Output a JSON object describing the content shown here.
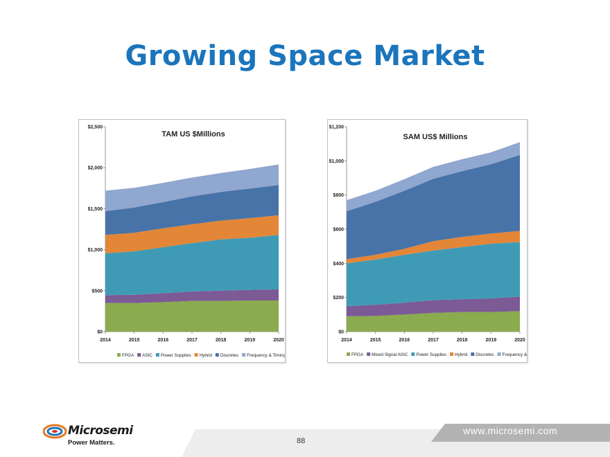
{
  "slide": {
    "title": "Growing Space Market",
    "page_number": "88",
    "website": "www.microsemi.com",
    "logo_name": "Microsemi",
    "logo_tagline": "Power Matters."
  },
  "colors": {
    "title": "#1b75bc",
    "series": [
      "#8aab4e",
      "#7b5a95",
      "#3f9bb5",
      "#e38637",
      "#4873a8",
      "#90a7cf"
    ]
  },
  "chart_data": [
    {
      "type": "area",
      "stacked": true,
      "title": "TAM US $Millions",
      "x": [
        2014,
        2015,
        2016,
        2017,
        2018,
        2019,
        2020
      ],
      "ylim": [
        0,
        2500
      ],
      "yticks": [
        0,
        500,
        1000,
        1500,
        2000,
        2500
      ],
      "ytick_labels": [
        "$0",
        "$500",
        "$1,000",
        "$1,500",
        "$2,000",
        "$2,500"
      ],
      "legend_position": "bottom",
      "series": [
        {
          "name": "FPGA",
          "values": [
            350,
            350,
            360,
            375,
            375,
            380,
            380
          ]
        },
        {
          "name": "ASIC",
          "values": [
            95,
            100,
            110,
            115,
            125,
            130,
            135
          ]
        },
        {
          "name": "Power Supplies",
          "values": [
            510,
            530,
            560,
            590,
            625,
            635,
            665
          ]
        },
        {
          "name": "Hybrid",
          "values": [
            225,
            225,
            230,
            230,
            230,
            240,
            240
          ]
        },
        {
          "name": "Discretes",
          "values": [
            290,
            310,
            320,
            340,
            350,
            360,
            370
          ]
        },
        {
          "name": "Frequency & Timing",
          "values": [
            250,
            240,
            235,
            230,
            230,
            240,
            250
          ]
        }
      ]
    },
    {
      "type": "area",
      "stacked": true,
      "title": "SAM US$ Millions",
      "x": [
        2014,
        2015,
        2016,
        2017,
        2018,
        2019,
        2020
      ],
      "ylim": [
        0,
        1200
      ],
      "yticks": [
        0,
        200,
        400,
        600,
        800,
        1000,
        1200
      ],
      "ytick_labels": [
        "$0",
        "$200",
        "$400",
        "$600",
        "$800",
        "$1,000",
        "$1,200"
      ],
      "legend_position": "bottom",
      "series": [
        {
          "name": "FPGA",
          "values": [
            90,
            92,
            100,
            110,
            115,
            115,
            120
          ]
        },
        {
          "name": "Mixed Signal ASIC",
          "values": [
            60,
            65,
            70,
            75,
            75,
            80,
            85
          ]
        },
        {
          "name": "Power Supplies",
          "values": [
            250,
            265,
            280,
            290,
            305,
            320,
            320
          ]
        },
        {
          "name": "Hybrid",
          "values": [
            25,
            28,
            35,
            55,
            60,
            60,
            65
          ]
        },
        {
          "name": "Discretes",
          "values": [
            280,
            310,
            340,
            365,
            385,
            405,
            445
          ]
        },
        {
          "name": "Frequency & Timing",
          "values": [
            65,
            65,
            68,
            70,
            70,
            70,
            75
          ]
        }
      ]
    }
  ]
}
